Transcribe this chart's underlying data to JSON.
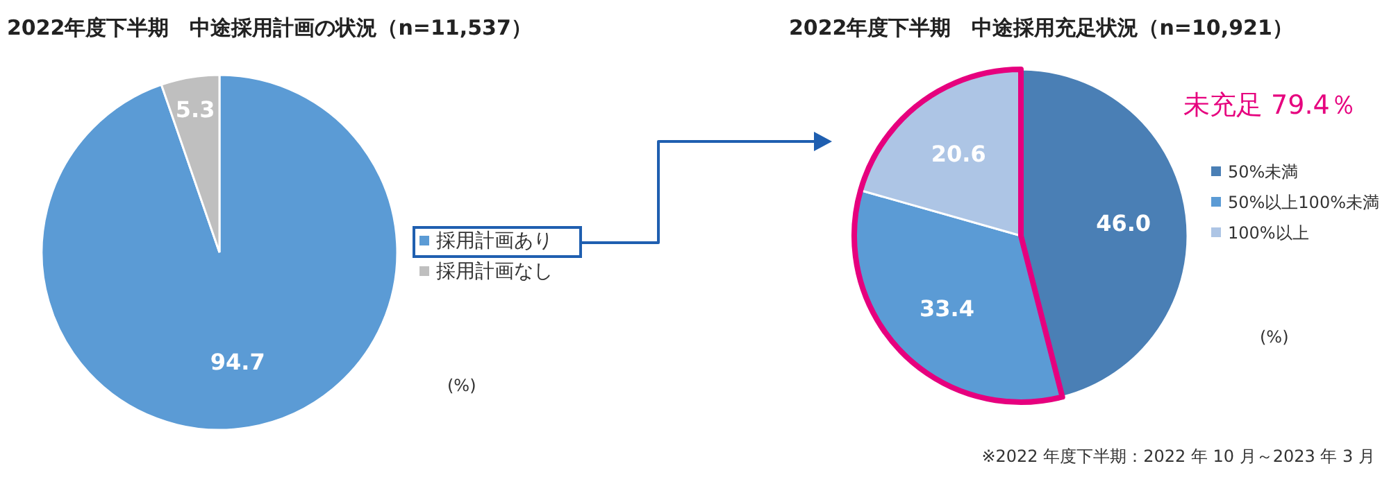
{
  "chart_data": [
    {
      "type": "pie",
      "title": "2022年度下半期　中途採用計画の状況（n=11,537）",
      "categories": [
        "採用計画あり",
        "採用計画なし"
      ],
      "values": [
        94.7,
        5.3
      ],
      "colors": [
        "#5b9bd5",
        "#bfbfbf"
      ],
      "data_labels": true,
      "legend": "right",
      "annotations": [
        "(%)"
      ]
    },
    {
      "type": "pie",
      "title": "2022年度下半期　中途採用充足状況（n=10,921）",
      "categories": [
        "50%未満",
        "50%以上100%未満",
        "100%以上"
      ],
      "values": [
        46.0,
        33.4,
        20.6
      ],
      "value_labels": [
        "46.0",
        "33.4",
        "20.6"
      ],
      "colors": [
        "#4a7fb5",
        "#5b9bd5",
        "#adc5e5"
      ],
      "legend": "right",
      "annotations": [
        "未充足 79.4％",
        "(%)",
        "※2022 年度下半期：2022 年 10 月～2023 年 3 月"
      ]
    }
  ]
}
